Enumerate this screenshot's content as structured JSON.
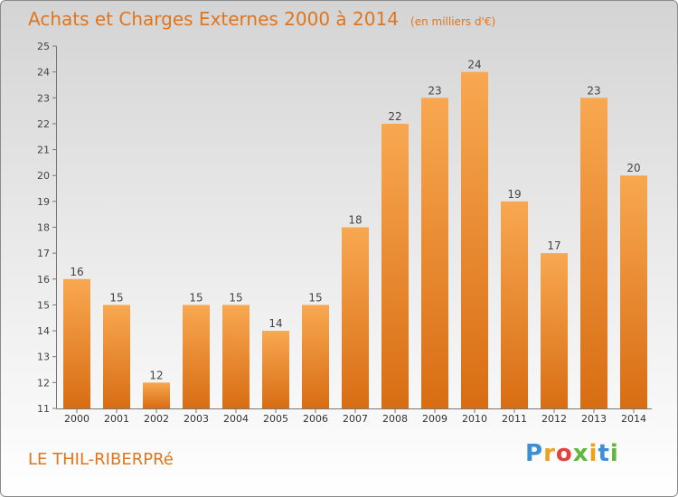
{
  "title": "Achats et Charges Externes 2000 à 2014",
  "unit_note": "(en milliers d'€)",
  "location": "LE THIL-RIBERPRé",
  "brand": "Proxiti",
  "colors": {
    "accent": "#e0751d",
    "bar_light": "#f8a851",
    "bar_dark": "#d86d13",
    "axis": "#777777"
  },
  "chart_data": {
    "type": "bar",
    "title": "Achats et Charges Externes 2000 à 2014",
    "xlabel": "",
    "ylabel": "",
    "ylim": [
      11,
      25
    ],
    "yticks": [
      11,
      12,
      13,
      14,
      15,
      16,
      17,
      18,
      19,
      20,
      21,
      22,
      23,
      24,
      25
    ],
    "grid": false,
    "categories": [
      "2000",
      "2001",
      "2002",
      "2003",
      "2004",
      "2005",
      "2006",
      "2007",
      "2008",
      "2009",
      "2010",
      "2011",
      "2012",
      "2013",
      "2014"
    ],
    "values": [
      16,
      15,
      12,
      15,
      15,
      14,
      15,
      18,
      22,
      23,
      24,
      19,
      17,
      23,
      20
    ]
  }
}
